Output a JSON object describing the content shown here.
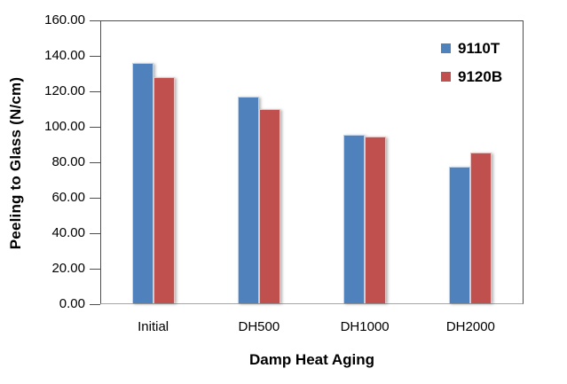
{
  "chart_data": {
    "type": "bar",
    "title": "",
    "xlabel": "Damp Heat Aging",
    "ylabel": "Peeling to Glass (N/cm)",
    "categories": [
      "Initial",
      "DH500",
      "DH1000",
      "DH2000"
    ],
    "series": [
      {
        "name": "9110T",
        "color": "#4F81BD",
        "values": [
          136.5,
          117.0,
          95.5,
          77.5
        ]
      },
      {
        "name": "9120B",
        "color": "#C0504D",
        "values": [
          128.5,
          110.0,
          94.5,
          85.5
        ]
      }
    ],
    "ylim": [
      0,
      160
    ],
    "ytick_step": 20,
    "ytick_labels": [
      "160.00",
      "140.00",
      "120.00",
      "100.00",
      "80.00",
      "60.00",
      "40.00",
      "20.00",
      "0.00"
    ],
    "grid": false,
    "legend_position": "top-right",
    "legend_entries": [
      "9110T",
      "9120B"
    ],
    "axis_color": "#4d4d4d",
    "baseline_color": "#a6a6a6"
  }
}
